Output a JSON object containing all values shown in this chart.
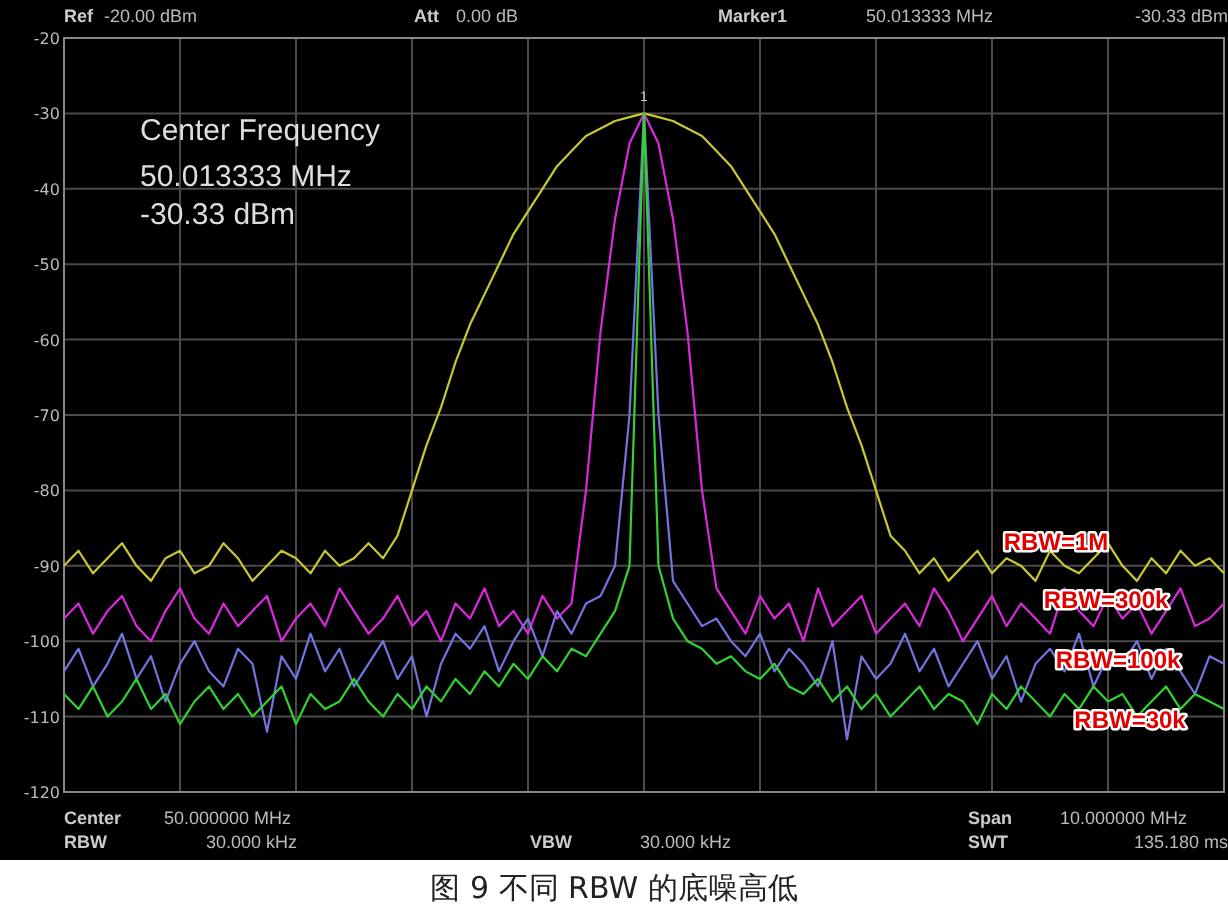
{
  "chart_data": {
    "type": "line",
    "title": "图 9 不同 RBW 的底噪高低",
    "categories": [
      null,
      null,
      null,
      null,
      null,
      null,
      null,
      null,
      null,
      null,
      null,
      null,
      null,
      null,
      null,
      null,
      null,
      null,
      null,
      null,
      null,
      null,
      null,
      null,
      null,
      null,
      null,
      null,
      null,
      null,
      null,
      null,
      null,
      null,
      null,
      null,
      null,
      null,
      null,
      null,
      null,
      null,
      null,
      null,
      null,
      null,
      null,
      null,
      null,
      null,
      null,
      null,
      null,
      null,
      null,
      null,
      null,
      null,
      null,
      null,
      null,
      null,
      null,
      null,
      null,
      null,
      null,
      null,
      null,
      null,
      null,
      null,
      null,
      null,
      null,
      null,
      null,
      null,
      null,
      null,
      null
    ],
    "ylim": [
      -120,
      -20
    ],
    "yticks": [
      -120,
      -110,
      -100,
      -90,
      -80,
      -70,
      -60,
      -50,
      -40,
      -30,
      -20
    ],
    "grid": true,
    "legend": false,
    "tick_labels": "y",
    "line_style": "solid",
    "marker": "none",
    "series": [
      {
        "name": "RBW=1M",
        "color": "#c8c832",
        "values": [
          -90,
          -88,
          -91,
          -89,
          -87,
          -90,
          -92,
          -89,
          -88,
          -91,
          -90,
          -87,
          -89,
          -92,
          -90,
          -88,
          -89,
          -91,
          -88,
          -90,
          -89,
          -87,
          -89,
          -86,
          -80,
          -74,
          -69,
          -63,
          -58,
          -54,
          -50,
          -46,
          -43,
          -40,
          -37,
          -35,
          -33,
          -32,
          -31,
          -30.5,
          -30,
          -30.5,
          -31,
          -32,
          -33,
          -35,
          -37,
          -40,
          -43,
          -46,
          -50,
          -54,
          -58,
          -63,
          -69,
          -74,
          -80,
          -86,
          -88,
          -91,
          -89,
          -92,
          -90,
          -88,
          -91,
          -89,
          -90,
          -92,
          -88,
          -90,
          -91,
          -89,
          -87,
          -90,
          -92,
          -89,
          -91,
          -88,
          -90,
          -89,
          -91
        ]
      },
      {
        "name": "RBW=300k",
        "color": "#dc28dc",
        "values": [
          -97,
          -95,
          -99,
          -96,
          -94,
          -98,
          -100,
          -96,
          -93,
          -97,
          -99,
          -95,
          -98,
          -96,
          -94,
          -100,
          -97,
          -95,
          -98,
          -93,
          -96,
          -99,
          -97,
          -94,
          -98,
          -96,
          -100,
          -95,
          -97,
          -93,
          -98,
          -96,
          -99,
          -94,
          -97,
          -95,
          -80,
          -59,
          -44,
          -34,
          -30,
          -34,
          -44,
          -59,
          -80,
          -93,
          -96,
          -99,
          -94,
          -97,
          -95,
          -100,
          -93,
          -98,
          -96,
          -94,
          -99,
          -97,
          -95,
          -98,
          -93,
          -96,
          -100,
          -97,
          -94,
          -98,
          -95,
          -97,
          -99,
          -93,
          -96,
          -98,
          -94,
          -97,
          -95,
          -99,
          -96,
          -93,
          -98,
          -97,
          -95
        ]
      },
      {
        "name": "RBW=100k",
        "color": "#7474e0",
        "values": [
          -104,
          -101,
          -106,
          -103,
          -99,
          -105,
          -102,
          -108,
          -103,
          -100,
          -104,
          -106,
          -101,
          -103,
          -112,
          -102,
          -105,
          -99,
          -104,
          -101,
          -106,
          -103,
          -100,
          -105,
          -102,
          -110,
          -103,
          -99,
          -101,
          -98,
          -104,
          -100,
          -97,
          -102,
          -96,
          -99,
          -95,
          -94,
          -90,
          -70,
          -30,
          -70,
          -92,
          -95,
          -98,
          -97,
          -100,
          -102,
          -99,
          -104,
          -101,
          -103,
          -106,
          -100,
          -113,
          -102,
          -105,
          -103,
          -99,
          -104,
          -101,
          -106,
          -103,
          -100,
          -105,
          -102,
          -108,
          -103,
          -101,
          -104,
          -99,
          -106,
          -102,
          -103,
          -100,
          -105,
          -101,
          -104,
          -107,
          -102,
          -103
        ]
      },
      {
        "name": "RBW=30k",
        "color": "#32d232",
        "values": [
          -107,
          -109,
          -106,
          -110,
          -108,
          -105,
          -109,
          -107,
          -111,
          -108,
          -106,
          -109,
          -107,
          -110,
          -108,
          -106,
          -111,
          -107,
          -109,
          -108,
          -105,
          -108,
          -110,
          -107,
          -109,
          -106,
          -108,
          -105,
          -107,
          -104,
          -106,
          -103,
          -105,
          -102,
          -104,
          -101,
          -102,
          -99,
          -96,
          -90,
          -30,
          -90,
          -97,
          -100,
          -101,
          -103,
          -102,
          -104,
          -105,
          -103,
          -106,
          -107,
          -105,
          -108,
          -106,
          -109,
          -107,
          -110,
          -108,
          -106,
          -109,
          -107,
          -108,
          -111,
          -107,
          -109,
          -106,
          -108,
          -110,
          -107,
          -109,
          -106,
          -108,
          -107,
          -110,
          -108,
          -106,
          -109,
          -107,
          -108,
          -109
        ]
      }
    ],
    "annotations": [
      "Ref",
      "-20.00 dBm",
      "Att",
      "0.00 dB",
      "Marker1",
      "50.013333  MHz",
      "-30.33 dBm",
      "Center Frequency",
      "50.013333  MHz",
      "-30.33 dBm",
      "Center",
      "50.000000  MHz",
      "Span",
      "10.000000  MHz",
      "RBW",
      "30.000  kHz",
      "VBW",
      "30.000  kHz",
      "SWT",
      "135.180 ms",
      "1"
    ]
  }
}
